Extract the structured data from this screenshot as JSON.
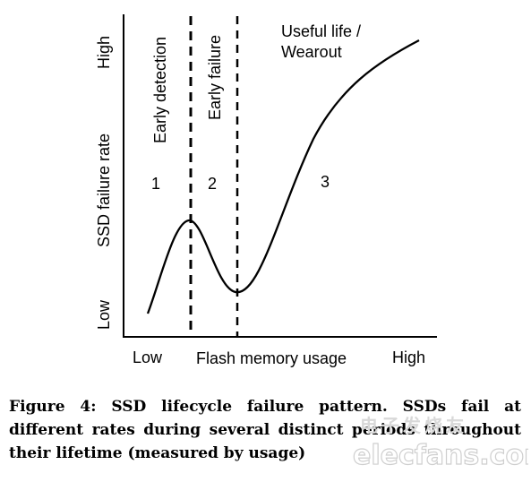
{
  "axes": {
    "y_label": "SSD failure rate",
    "y_low": "Low",
    "y_high": "High",
    "x_label": "Flash memory usage",
    "x_low": "Low",
    "x_high": "High"
  },
  "regions": [
    {
      "number": "1",
      "label": "Early detection"
    },
    {
      "number": "2",
      "label": "Early failure"
    },
    {
      "number": "3",
      "label_line1": "Useful life /",
      "label_line2": "Wearout"
    }
  ],
  "caption": "Figure 4: SSD lifecycle failure pattern. SSDs fail at different rates during several distinct periods throughout their lifetime (measured by usage)",
  "watermark": {
    "line1": "电子发烧友",
    "line2": "elecfans.com"
  }
}
